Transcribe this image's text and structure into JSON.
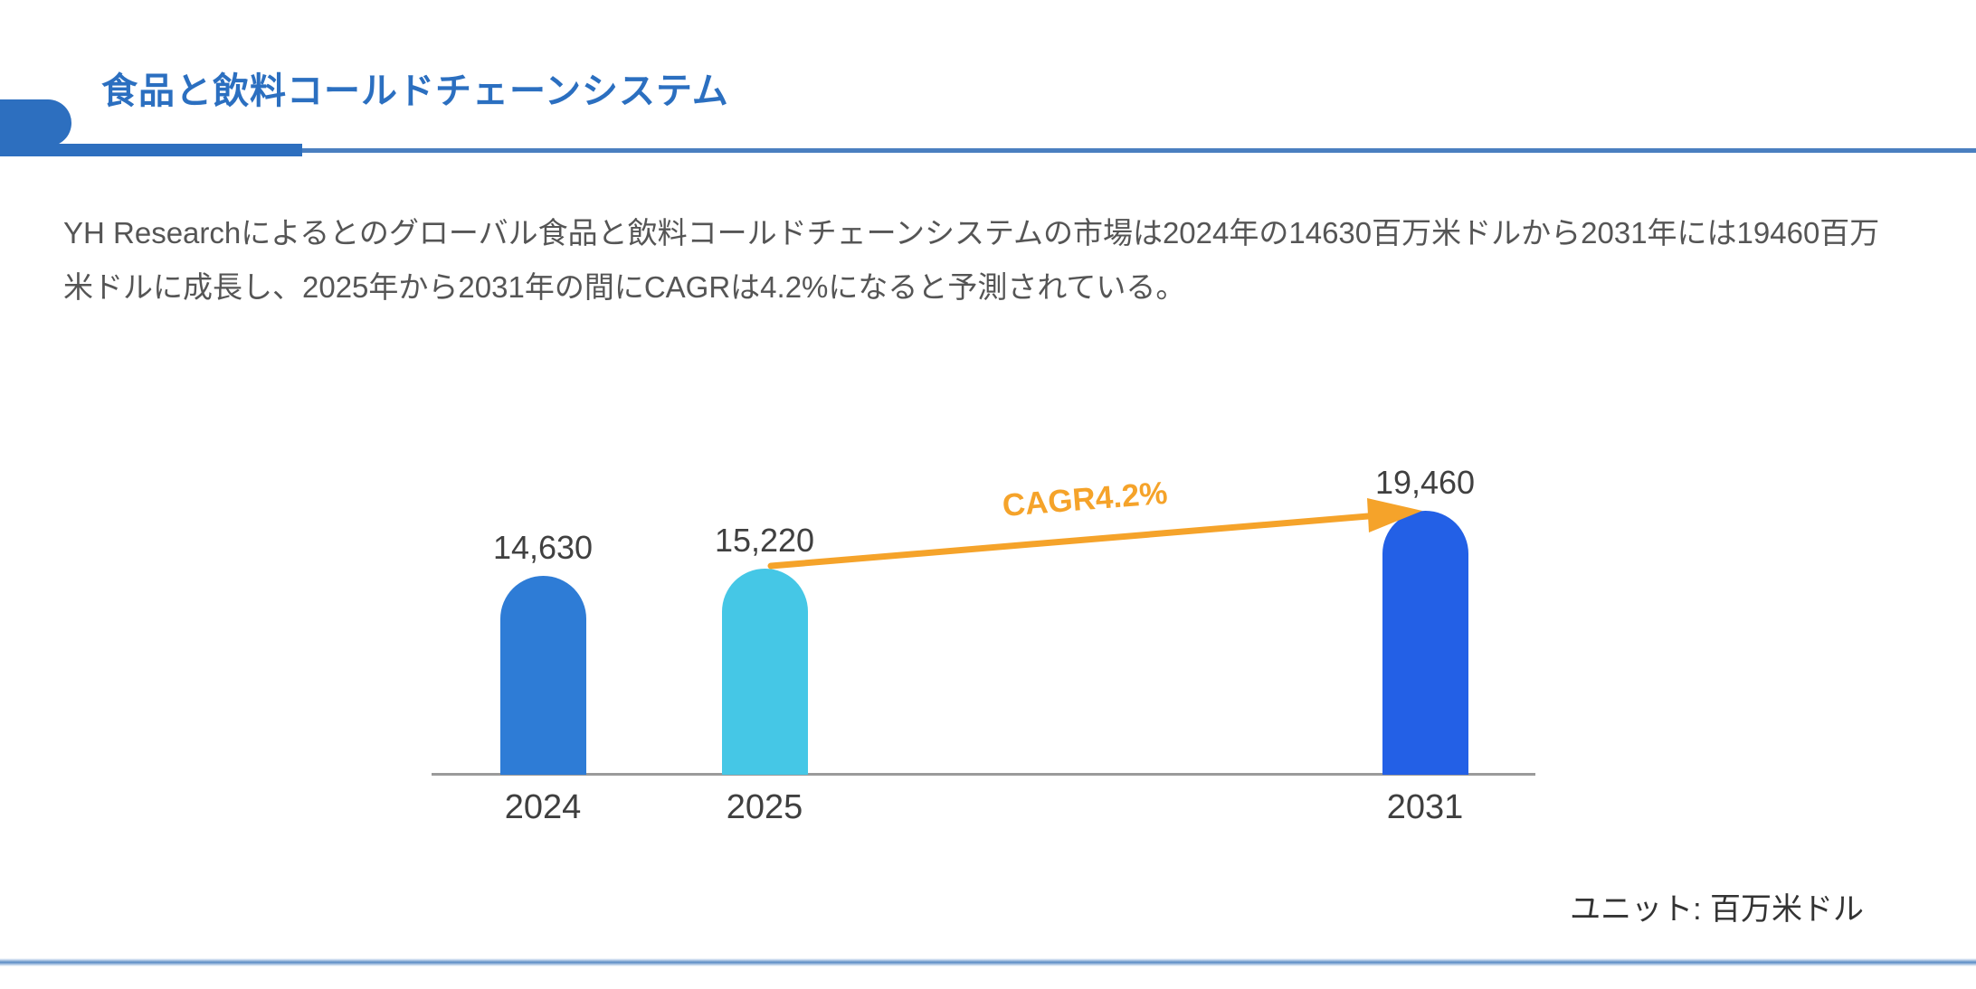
{
  "header": {
    "title": "食品と飲料コールドチェーンシステム",
    "accent_color": "#2D6FBF"
  },
  "summary": {
    "text": "YH Researchによるとのグローバル食品と飲料コールドチェーンシステムの市場は2024年の14630百万米ドルから2031年には19460百万米ドルに成長し、2025年から2031年の間にCAGRは4.2%になると予測されている。"
  },
  "chart_data": {
    "type": "bar",
    "title": "",
    "categories": [
      "2024",
      "2025",
      "2031"
    ],
    "values": [
      14630,
      15220,
      19460
    ],
    "value_labels": [
      "14,630",
      "15,220",
      "19,460"
    ],
    "bar_colors": [
      "#2E7CD6",
      "#45C7E6",
      "#2360E6"
    ],
    "ylim": [
      0,
      19460
    ],
    "grid": false,
    "legend": false,
    "xlabel": "",
    "ylabel": "",
    "axis_color": "#9A9A9A",
    "label_color": "#404040",
    "annotation": {
      "label": "CAGR4.2%",
      "color": "#F5A32A",
      "from_category": "2025",
      "to_category": "2031"
    },
    "unit_label": "ユニット: 百万米ドル"
  }
}
